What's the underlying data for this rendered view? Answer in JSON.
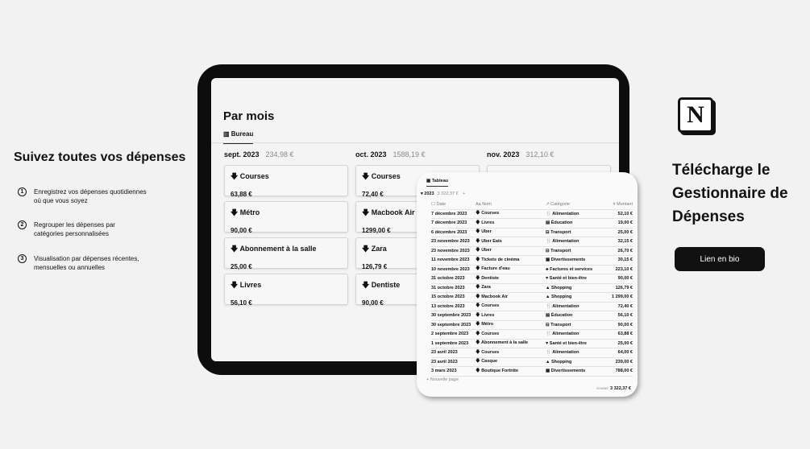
{
  "left": {
    "title": "Suivez toutes vos dépenses",
    "steps": [
      {
        "n": "1",
        "text": "Enregistrez vos dépenses quotidiennes où que vous soyez"
      },
      {
        "n": "2",
        "text": "Regrouper les dépenses par catégories personnalisées"
      },
      {
        "n": "3",
        "text": "Visualisation par dépenses récentes, mensuelles ou annuelles"
      }
    ]
  },
  "board": {
    "title": "Par mois",
    "tab": "Bureau",
    "columns": [
      {
        "month": "sept. 2023",
        "total": "234,98 €",
        "cards": [
          {
            "name": "Courses",
            "amount": "63,88 €"
          },
          {
            "name": "Métro",
            "amount": "90,00 €"
          },
          {
            "name": "Abonnement à la salle",
            "amount": "25,00 €"
          },
          {
            "name": "Livres",
            "amount": "56,10 €"
          }
        ]
      },
      {
        "month": "oct. 2023",
        "total": "1588,19 €",
        "cards": [
          {
            "name": "Courses",
            "amount": "72,40 €"
          },
          {
            "name": "Macbook Air",
            "amount": "1299,00 €"
          },
          {
            "name": "Zara",
            "amount": "126,79 €"
          },
          {
            "name": "Dentiste",
            "amount": "90,00 €"
          }
        ]
      },
      {
        "month": "nov. 2023",
        "total": "312,10 €",
        "cards": []
      }
    ]
  },
  "table": {
    "tab": "Tableau",
    "group": "2023",
    "group_total": "3 322,37 €",
    "headers": [
      "Date",
      "Nom",
      "Catégorie",
      "Montant"
    ],
    "rows": [
      [
        "7 décembre 2023",
        "Courses",
        "Alimentation",
        "52,10 €"
      ],
      [
        "7 décembre 2023",
        "Livres",
        "Éducation",
        "19,00 €"
      ],
      [
        "6 décembre 2023",
        "Uber",
        "Transport",
        "25,00 €"
      ],
      [
        "23 novembre 2023",
        "Uber Eats",
        "Alimentation",
        "32,15 €"
      ],
      [
        "23 novembre 2023",
        "Uber",
        "Transport",
        "26,70 €"
      ],
      [
        "11 novembre 2023",
        "Tickets de cinéma",
        "Divertissements",
        "30,15 €"
      ],
      [
        "10 novembre 2023",
        "Facture d'eau",
        "Factures et services",
        "223,10 €"
      ],
      [
        "31 octobre 2023",
        "Dentiste",
        "Santé et bien-être",
        "90,00 €"
      ],
      [
        "31 octobre 2023",
        "Zara",
        "Shopping",
        "126,79 €"
      ],
      [
        "15 octobre 2023",
        "Macbook Air",
        "Shopping",
        "1 299,00 €"
      ],
      [
        "13 octobre 2023",
        "Courses",
        "Alimentation",
        "72,40 €"
      ],
      [
        "30 septembre 2023",
        "Livres",
        "Éducation",
        "56,10 €"
      ],
      [
        "30 septembre 2023",
        "Métro",
        "Transport",
        "90,00 €"
      ],
      [
        "2 septembre 2023",
        "Courses",
        "Alimentation",
        "63,88 €"
      ],
      [
        "1 septembre 2023",
        "Abonnement à la salle",
        "Santé et bien-être",
        "25,00 €"
      ],
      [
        "23 avril 2023",
        "Courses",
        "Alimentation",
        "64,00 €"
      ],
      [
        "23 avril 2023",
        "Casque",
        "Shopping",
        "239,00 €"
      ],
      [
        "3 mars 2023",
        "Boutique Fortnite",
        "Divertissements",
        "788,00 €"
      ]
    ],
    "new_page": "+ Nouvelle page",
    "sum_label": "SOMME",
    "sum": "3 322,37 €"
  },
  "right": {
    "logo": "N",
    "cta_lines": [
      "Télécharge le",
      "Gestionnaire de",
      "Dépenses"
    ],
    "button": "Lien en bio"
  }
}
